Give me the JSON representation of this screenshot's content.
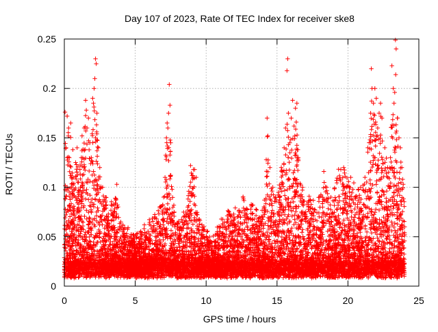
{
  "chart_data": {
    "type": "scatter",
    "title": "Day 107 of 2023, Rate Of TEC Index for receiver ske8",
    "xlabel": "GPS time / hours",
    "ylabel": "ROTI / TECUs",
    "xlim": [
      0,
      25
    ],
    "ylim": [
      0,
      0.25
    ],
    "xticks": [
      0,
      5,
      10,
      15,
      20,
      25
    ],
    "xtick_labels": [
      "0",
      "5",
      "10",
      "15",
      "20",
      "25"
    ],
    "yticks": [
      0,
      0.05,
      0.1,
      0.15,
      0.2,
      0.25
    ],
    "ytick_labels": [
      "0",
      "0.05",
      "0.1",
      "0.15",
      "0.2",
      "0.25"
    ],
    "grid": true,
    "marker": "plus",
    "color": "#ff0000",
    "series": [
      {
        "values_xy": [
          [
            0.05,
            0.176
          ],
          [
            0.12,
            0.14
          ],
          [
            0.2,
            0.172
          ],
          [
            0.3,
            0.16
          ],
          [
            0.35,
            0.13
          ],
          [
            0.45,
            0.165
          ],
          [
            0.5,
            0.11
          ],
          [
            0.6,
            0.138
          ],
          [
            0.7,
            0.098
          ],
          [
            0.8,
            0.125
          ],
          [
            0.9,
            0.14
          ],
          [
            1.0,
            0.105
          ],
          [
            1.1,
            0.118
          ],
          [
            1.2,
            0.13
          ],
          [
            1.25,
            0.152
          ],
          [
            1.4,
            0.16
          ],
          [
            1.5,
            0.188
          ],
          [
            1.55,
            0.178
          ],
          [
            1.6,
            0.16
          ],
          [
            1.7,
            0.17
          ],
          [
            1.8,
            0.145
          ],
          [
            1.9,
            0.13
          ],
          [
            2.0,
            0.19
          ],
          [
            2.05,
            0.185
          ],
          [
            2.1,
            0.2
          ],
          [
            2.15,
            0.21
          ],
          [
            2.2,
            0.23
          ],
          [
            2.25,
            0.225
          ],
          [
            2.3,
            0.175
          ],
          [
            2.4,
            0.14
          ],
          [
            2.5,
            0.12
          ],
          [
            2.7,
            0.1
          ],
          [
            2.9,
            0.085
          ],
          [
            3.1,
            0.07
          ],
          [
            3.3,
            0.082
          ],
          [
            3.5,
            0.075
          ],
          [
            3.7,
            0.103
          ],
          [
            3.9,
            0.06
          ],
          [
            4.2,
            0.05
          ],
          [
            4.6,
            0.045
          ],
          [
            5.0,
            0.04
          ],
          [
            5.4,
            0.042
          ],
          [
            5.8,
            0.05
          ],
          [
            6.2,
            0.055
          ],
          [
            6.5,
            0.068
          ],
          [
            6.9,
            0.075
          ],
          [
            7.0,
            0.09
          ],
          [
            7.1,
            0.11
          ],
          [
            7.2,
            0.15
          ],
          [
            7.25,
            0.165
          ],
          [
            7.3,
            0.16
          ],
          [
            7.35,
            0.175
          ],
          [
            7.4,
            0.204
          ],
          [
            7.45,
            0.183
          ],
          [
            7.5,
            0.145
          ],
          [
            7.6,
            0.098
          ],
          [
            7.8,
            0.06
          ],
          [
            8.1,
            0.05
          ],
          [
            8.4,
            0.07
          ],
          [
            8.7,
            0.08
          ],
          [
            8.9,
            0.122
          ],
          [
            9.0,
            0.112
          ],
          [
            9.1,
            0.118
          ],
          [
            9.3,
            0.11
          ],
          [
            9.5,
            0.06
          ],
          [
            9.8,
            0.05
          ],
          [
            10.2,
            0.045
          ],
          [
            10.6,
            0.04
          ],
          [
            11.0,
            0.055
          ],
          [
            11.5,
            0.065
          ],
          [
            12.0,
            0.068
          ],
          [
            12.3,
            0.072
          ],
          [
            12.6,
            0.09
          ],
          [
            12.9,
            0.07
          ],
          [
            13.3,
            0.082
          ],
          [
            13.7,
            0.065
          ],
          [
            14.1,
            0.08
          ],
          [
            14.3,
            0.17
          ],
          [
            14.35,
            0.152
          ],
          [
            14.5,
            0.12
          ],
          [
            14.7,
            0.1
          ],
          [
            14.9,
            0.09
          ],
          [
            15.1,
            0.095
          ],
          [
            15.3,
            0.12
          ],
          [
            15.5,
            0.14
          ],
          [
            15.6,
            0.16
          ],
          [
            15.7,
            0.218
          ],
          [
            15.75,
            0.23
          ],
          [
            15.8,
            0.175
          ],
          [
            15.9,
            0.145
          ],
          [
            16.0,
            0.17
          ],
          [
            16.1,
            0.188
          ],
          [
            16.2,
            0.162
          ],
          [
            16.3,
            0.18
          ],
          [
            16.4,
            0.185
          ],
          [
            16.5,
            0.13
          ],
          [
            16.8,
            0.1
          ],
          [
            17.2,
            0.085
          ],
          [
            17.6,
            0.075
          ],
          [
            18.0,
            0.09
          ],
          [
            18.3,
            0.116
          ],
          [
            18.5,
            0.1
          ],
          [
            18.8,
            0.09
          ],
          [
            19.2,
            0.107
          ],
          [
            19.5,
            0.118
          ],
          [
            19.7,
            0.12
          ],
          [
            19.9,
            0.1
          ],
          [
            20.2,
            0.11
          ],
          [
            20.5,
            0.09
          ],
          [
            20.9,
            0.1
          ],
          [
            21.2,
            0.11
          ],
          [
            21.4,
            0.14
          ],
          [
            21.6,
            0.175
          ],
          [
            21.65,
            0.22
          ],
          [
            21.7,
            0.2
          ],
          [
            21.8,
            0.185
          ],
          [
            21.9,
            0.2
          ],
          [
            22.0,
            0.19
          ],
          [
            22.1,
            0.16
          ],
          [
            22.2,
            0.175
          ],
          [
            22.3,
            0.185
          ],
          [
            22.4,
            0.17
          ],
          [
            22.6,
            0.14
          ],
          [
            22.8,
            0.12
          ],
          [
            23.0,
            0.13
          ],
          [
            23.1,
            0.223
          ],
          [
            23.2,
            0.2
          ],
          [
            23.25,
            0.185
          ],
          [
            23.3,
            0.196
          ],
          [
            23.35,
            0.249
          ],
          [
            23.4,
            0.24
          ],
          [
            23.5,
            0.17
          ],
          [
            23.6,
            0.15
          ],
          [
            23.7,
            0.14
          ],
          [
            23.8,
            0.12
          ],
          [
            23.9,
            0.103
          ],
          [
            24.0,
            0.06
          ]
        ]
      }
    ]
  }
}
